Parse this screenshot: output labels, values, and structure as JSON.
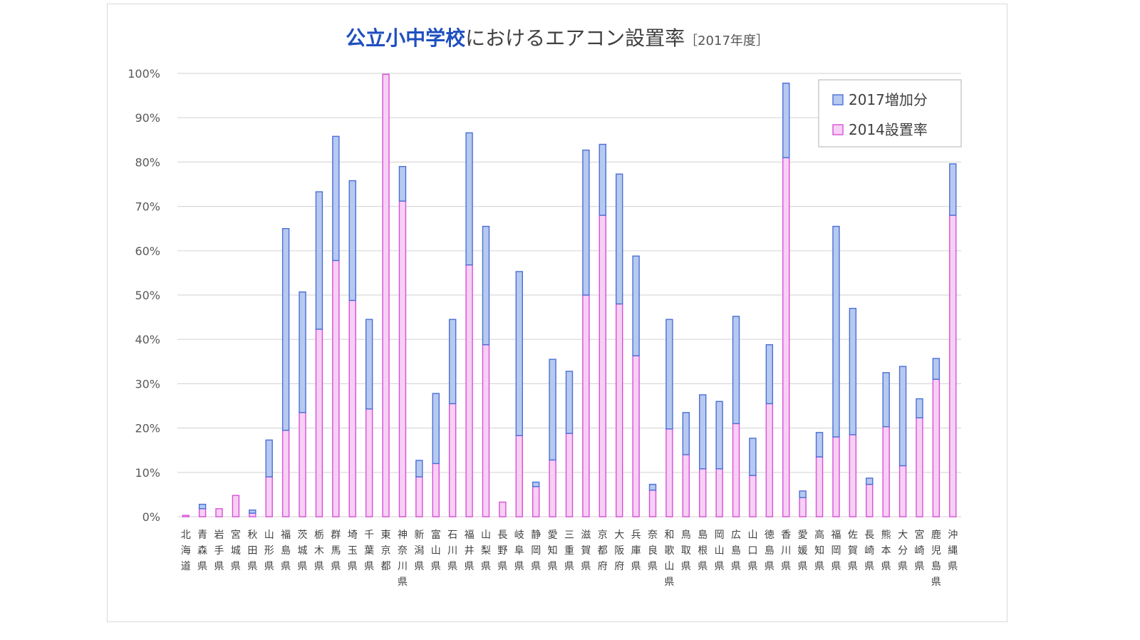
{
  "title": {
    "highlight": "公立小中学校",
    "rest": "におけるエアコン設置率",
    "year": "［2017年度］"
  },
  "colors": {
    "increase": "#b7c9f0",
    "increase_stroke": "#4a6fd6",
    "base": "#f7d0f5",
    "base_stroke": "#d84fd8",
    "grid": "#d9d9d9",
    "title_highlight": "#1f4fbf"
  },
  "chart_data": {
    "type": "bar",
    "stacked": true,
    "ylim": [
      0,
      100
    ],
    "yticks": [
      "0%",
      "10%",
      "20%",
      "30%",
      "40%",
      "50%",
      "60%",
      "70%",
      "80%",
      "90%",
      "100%"
    ],
    "grid": true,
    "legend_position": "top-right",
    "categories": [
      "北海道",
      "青森県",
      "岩手県",
      "宮城県",
      "秋田県",
      "山形県",
      "福島県",
      "茨城県",
      "栃木県",
      "群馬県",
      "埼玉県",
      "千葉県",
      "東京都",
      "神奈川県",
      "新潟県",
      "富山県",
      "石川県",
      "福井県",
      "山梨県",
      "長野県",
      "岐阜県",
      "静岡県",
      "愛知県",
      "三重県",
      "滋賀県",
      "京都府",
      "大阪府",
      "兵庫県",
      "奈良県",
      "和歌山県",
      "鳥取県",
      "島根県",
      "岡山県",
      "広島県",
      "山口県",
      "徳島県",
      "香川県",
      "愛媛県",
      "高知県",
      "福岡県",
      "佐賀県",
      "長崎県",
      "熊本県",
      "大分県",
      "宮崎県",
      "鹿児島県",
      "沖縄県"
    ],
    "series": [
      {
        "name": "2014設置率",
        "values": [
          0.3,
          1.8,
          1.8,
          4.8,
          0.8,
          9.0,
          19.5,
          23.5,
          42.3,
          57.8,
          48.8,
          24.3,
          99.8,
          71.2,
          9.0,
          12.0,
          25.5,
          56.8,
          38.8,
          3.3,
          18.3,
          6.8,
          12.8,
          18.8,
          50.0,
          68.0,
          48.0,
          36.3,
          6.0,
          19.8,
          14.0,
          10.8,
          10.8,
          21.0,
          9.3,
          25.5,
          81.0,
          4.3,
          13.5,
          18.0,
          18.5,
          7.3,
          20.3,
          11.5,
          22.3,
          31.0,
          68.0
        ]
      },
      {
        "name": "2017増加分",
        "values": [
          0.0,
          1.0,
          0.0,
          0.0,
          0.7,
          8.3,
          45.5,
          27.2,
          31.0,
          28.0,
          27.0,
          20.2,
          0.0,
          7.8,
          3.7,
          15.8,
          19.0,
          29.8,
          26.7,
          0.0,
          37.0,
          1.0,
          22.7,
          14.0,
          32.7,
          16.0,
          29.3,
          22.5,
          1.3,
          24.7,
          9.5,
          16.7,
          15.2,
          24.2,
          8.4,
          13.3,
          16.8,
          1.5,
          5.5,
          47.5,
          28.5,
          1.4,
          12.2,
          22.4,
          4.3,
          4.7,
          11.6
        ]
      }
    ]
  }
}
